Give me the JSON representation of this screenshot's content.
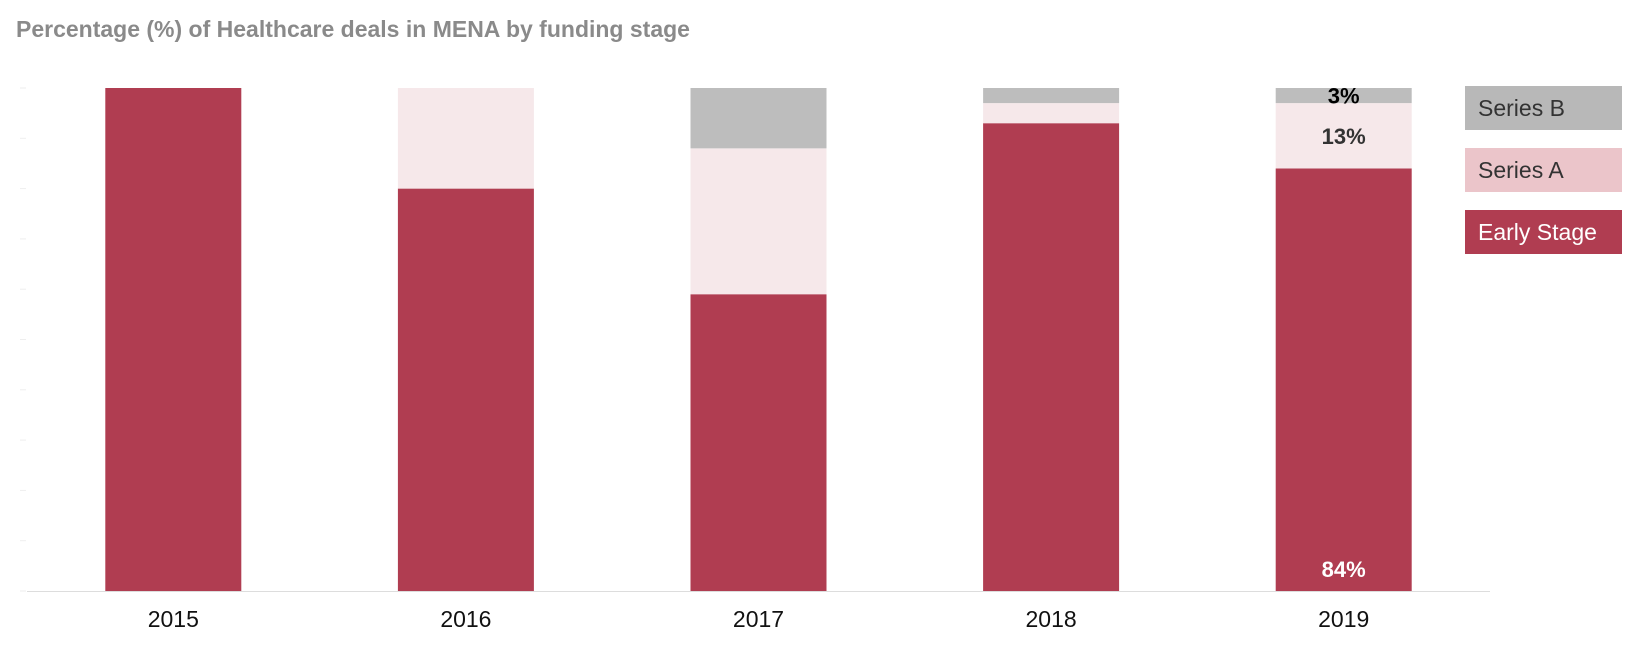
{
  "chart_data": {
    "type": "bar",
    "stacked": true,
    "title": "Percentage (%) of Healthcare deals in MENA by funding stage",
    "xlabel": "",
    "ylabel": "",
    "ylim": [
      0,
      100
    ],
    "grid": false,
    "legend_position": "right",
    "categories": [
      "2015",
      "2016",
      "2017",
      "2018",
      "2019"
    ],
    "series": [
      {
        "name": "Early Stage",
        "color": "#b03d51",
        "values": [
          100,
          80,
          59,
          93,
          84
        ]
      },
      {
        "name": "Series A",
        "color": "#f6e8ea",
        "values": [
          0,
          20,
          29,
          4,
          13
        ]
      },
      {
        "name": "Series B",
        "color": "#bdbdbd",
        "values": [
          0,
          0,
          12,
          3,
          3
        ]
      }
    ],
    "data_labels": [
      {
        "series": "Early Stage",
        "category": "2019",
        "text": "84%",
        "color": "#ffffff"
      },
      {
        "series": "Series A",
        "category": "2019",
        "text": "13%",
        "color": "#333333"
      },
      {
        "series": "Series B",
        "category": "2019",
        "text": "3%",
        "color": "#000000"
      }
    ],
    "legend": [
      {
        "name": "Series B",
        "bg": "#b8b8b8",
        "text_color": "#333333"
      },
      {
        "name": "Series A",
        "bg": "#ebc5ca",
        "text_color": "#333333"
      },
      {
        "name": "Early Stage",
        "bg": "#b03d51",
        "text_color": "#ffffff"
      }
    ]
  }
}
